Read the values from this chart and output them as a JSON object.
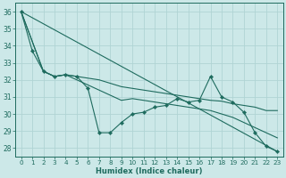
{
  "xlabel": "Humidex (Indice chaleur)",
  "xlim": [
    -0.5,
    23.5
  ],
  "ylim": [
    27.5,
    36.5
  ],
  "yticks": [
    28,
    29,
    30,
    31,
    32,
    33,
    34,
    35,
    36
  ],
  "xticks": [
    0,
    1,
    2,
    3,
    4,
    5,
    6,
    7,
    8,
    9,
    10,
    11,
    12,
    13,
    14,
    15,
    16,
    17,
    18,
    19,
    20,
    21,
    22,
    23
  ],
  "bg_color": "#cce8e8",
  "line_color": "#1e6b5e",
  "grid_color": "#b0d4d4",
  "series": [
    {
      "name": "jagged_markers",
      "x": [
        0,
        1,
        2,
        3,
        4,
        5,
        6,
        7,
        8,
        9,
        10,
        11,
        12,
        13,
        14,
        15,
        16,
        17,
        18,
        19,
        20,
        21,
        22,
        23
      ],
      "y": [
        36.0,
        33.7,
        32.5,
        32.2,
        32.3,
        32.2,
        31.5,
        28.9,
        28.9,
        29.5,
        30.0,
        30.1,
        30.4,
        30.5,
        30.9,
        30.7,
        30.8,
        32.2,
        31.0,
        30.7,
        30.1,
        28.9,
        28.1,
        27.8
      ],
      "marker": true
    },
    {
      "name": "straight_diagonal",
      "x": [
        0,
        23
      ],
      "y": [
        36.0,
        27.8
      ],
      "marker": false
    },
    {
      "name": "upper_curve",
      "x": [
        0,
        2,
        3,
        4,
        5,
        6,
        7,
        8,
        9,
        10,
        11,
        12,
        13,
        14,
        15,
        16,
        17,
        18,
        19,
        20,
        21,
        22,
        23
      ],
      "y": [
        36.0,
        32.5,
        32.2,
        32.3,
        32.2,
        32.1,
        32.0,
        31.8,
        31.6,
        31.5,
        31.4,
        31.3,
        31.2,
        31.1,
        31.0,
        30.9,
        30.8,
        30.75,
        30.6,
        30.5,
        30.4,
        30.2,
        30.2
      ],
      "marker": false
    },
    {
      "name": "lower_curve",
      "x": [
        0,
        2,
        3,
        4,
        5,
        6,
        7,
        8,
        9,
        10,
        11,
        12,
        13,
        14,
        15,
        16,
        17,
        18,
        19,
        20,
        21,
        22,
        23
      ],
      "y": [
        36.0,
        32.5,
        32.2,
        32.3,
        32.0,
        31.7,
        31.4,
        31.1,
        30.8,
        30.9,
        30.8,
        30.7,
        30.6,
        30.5,
        30.4,
        30.3,
        30.2,
        30.0,
        29.8,
        29.5,
        29.2,
        28.9,
        28.6
      ],
      "marker": false
    }
  ]
}
